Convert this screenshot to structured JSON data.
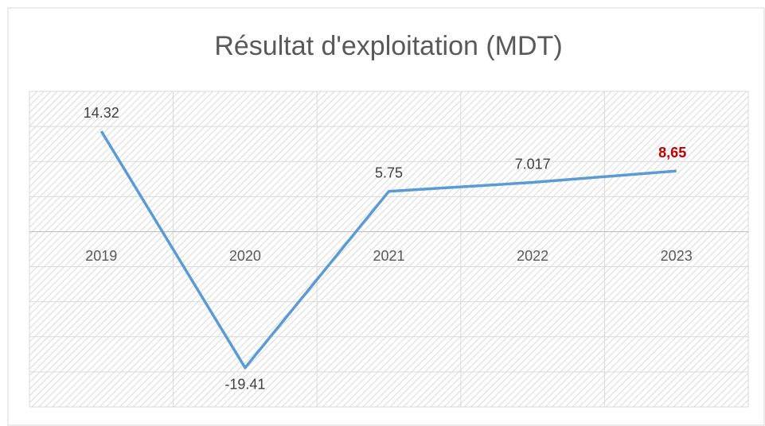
{
  "chart_data": {
    "type": "line",
    "title": "Résultat d'exploitation (MDT)",
    "categories": [
      "2019",
      "2020",
      "2021",
      "2022",
      "2023"
    ],
    "series": [
      {
        "name": "Résultat d'exploitation",
        "color": "#5b9bd5",
        "values": [
          14.32,
          -19.41,
          5.75,
          7.017,
          8.65
        ],
        "value_labels": [
          "14.32",
          "-19.41",
          "5.75",
          "7.017",
          "8,65"
        ],
        "value_label_colors": [
          "#404040",
          "#404040",
          "#404040",
          "#404040",
          "#c00000"
        ]
      }
    ],
    "ylim": [
      -25,
      20
    ],
    "yticks": [
      -25,
      -20,
      -15,
      -10,
      -5,
      0,
      5,
      10,
      15,
      20
    ],
    "grid": true
  }
}
